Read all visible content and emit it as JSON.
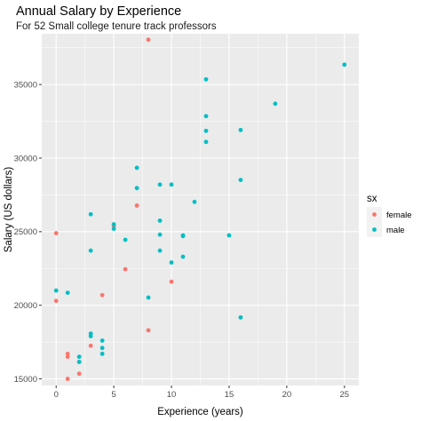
{
  "chart_data": {
    "type": "scatter",
    "title": "Annual Salary by Experience",
    "subtitle": "For 52 Small college tenure track professors",
    "xlabel": "Experience (years)",
    "ylabel": "Salary (US dollars)",
    "xlim": [
      -1.25,
      26.25
    ],
    "ylim": [
      14550,
      38450
    ],
    "x_ticks": [
      0,
      5,
      10,
      15,
      20,
      25
    ],
    "y_ticks": [
      15000,
      20000,
      25000,
      30000,
      35000
    ],
    "grid": true,
    "legend": {
      "title": "sx",
      "position": "right",
      "entries": [
        {
          "label": "female",
          "color": "#F8766D"
        },
        {
          "label": "male",
          "color": "#00BFC4"
        }
      ]
    },
    "series": [
      {
        "name": "female",
        "color": "#F8766D",
        "points": [
          [
            8,
            38045
          ],
          [
            0,
            24900
          ],
          [
            5,
            25400
          ],
          [
            7,
            26775
          ],
          [
            6,
            22450
          ],
          [
            4,
            20690
          ],
          [
            10,
            21600
          ],
          [
            0,
            20300
          ],
          [
            8,
            18300
          ],
          [
            3,
            17250
          ],
          [
            1,
            16700
          ],
          [
            2,
            16150
          ],
          [
            1,
            15000
          ],
          [
            2,
            15350
          ],
          [
            1,
            16500
          ]
        ]
      },
      {
        "name": "male",
        "color": "#00BFC4",
        "points": [
          [
            25,
            36350
          ],
          [
            13,
            35350
          ],
          [
            19,
            33696
          ],
          [
            13,
            32850
          ],
          [
            16,
            31909
          ],
          [
            13,
            31850
          ],
          [
            13,
            31100
          ],
          [
            7,
            29342
          ],
          [
            16,
            28516
          ],
          [
            9,
            28200
          ],
          [
            10,
            28200
          ],
          [
            7,
            27959
          ],
          [
            12,
            27025
          ],
          [
            3,
            26182
          ],
          [
            9,
            25748
          ],
          [
            5,
            25500
          ],
          [
            5,
            25200
          ],
          [
            9,
            24800
          ],
          [
            11,
            24750
          ],
          [
            11,
            24700
          ],
          [
            15,
            24750
          ],
          [
            6,
            24450
          ],
          [
            11,
            23300
          ],
          [
            3,
            23713
          ],
          [
            9,
            23713
          ],
          [
            10,
            22906
          ],
          [
            0,
            21000
          ],
          [
            1,
            20850
          ],
          [
            8,
            20525
          ],
          [
            16,
            19175
          ],
          [
            3,
            18075
          ],
          [
            3,
            17900
          ],
          [
            4,
            17600
          ],
          [
            4,
            17100
          ],
          [
            4,
            16700
          ],
          [
            2,
            16500
          ],
          [
            2,
            16150
          ]
        ]
      }
    ]
  }
}
